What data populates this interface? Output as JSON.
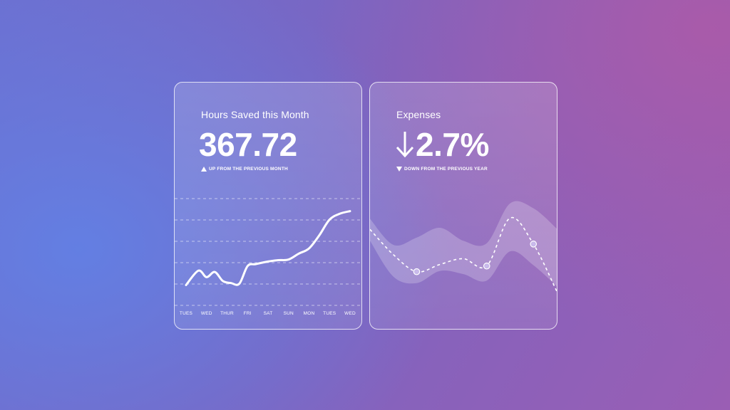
{
  "cards": {
    "hours": {
      "title": "Hours Saved this Month",
      "value": "367.72",
      "subtitle": "UP FROM THE PREVIOUS MONTH",
      "trend": "up"
    },
    "expenses": {
      "title": "Expenses",
      "value": "2.7%",
      "subtitle": "DOWN FROM THE PREVIOUS YEAR",
      "trend": "down"
    }
  },
  "colors": {
    "line": "#ffffff",
    "band": "rgba(255,255,255,0.22)"
  },
  "chart_data": [
    {
      "type": "line",
      "categories": [
        "TUES",
        "WED",
        "THUR",
        "FRI",
        "SAT",
        "SUN",
        "MON",
        "TUES",
        "WED"
      ],
      "x": [
        0,
        0.6,
        1,
        1.4,
        1.8,
        2.2,
        2.6,
        3,
        3.4,
        4,
        4.5,
        5,
        5.5,
        6,
        6.5,
        7,
        7.5,
        8
      ],
      "series": [
        {
          "values": [
            3,
            5.2,
            4.2,
            5,
            3.6,
            3.3,
            3.2,
            5.9,
            6.2,
            6.6,
            6.8,
            6.9,
            7.8,
            8.6,
            10.6,
            13.0,
            13.9,
            14.3
          ]
        }
      ],
      "grid": true,
      "ylim": [
        0,
        16
      ]
    },
    {
      "type": "area",
      "x": [
        0,
        1,
        2,
        3,
        4,
        5,
        6,
        7,
        8
      ],
      "series": [
        {
          "values": [
            8.2,
            5.1,
            3.0,
            3.9,
            4.6,
            3.7,
            9.6,
            6.4,
            0.6
          ],
          "style": "dashed-line",
          "markers_at": [
            2,
            5,
            7
          ]
        },
        {
          "values": [
            9.5,
            6.3,
            7.2,
            8.4,
            6.8,
            6.5,
            11.4,
            10.8,
            8.3
          ],
          "style": "band-upper"
        },
        {
          "values": [
            6.8,
            2.4,
            1.6,
            3.1,
            2.7,
            1.9,
            5.5,
            3.8,
            1.2
          ],
          "style": "band-lower"
        }
      ],
      "ylim": [
        0,
        14
      ]
    }
  ]
}
